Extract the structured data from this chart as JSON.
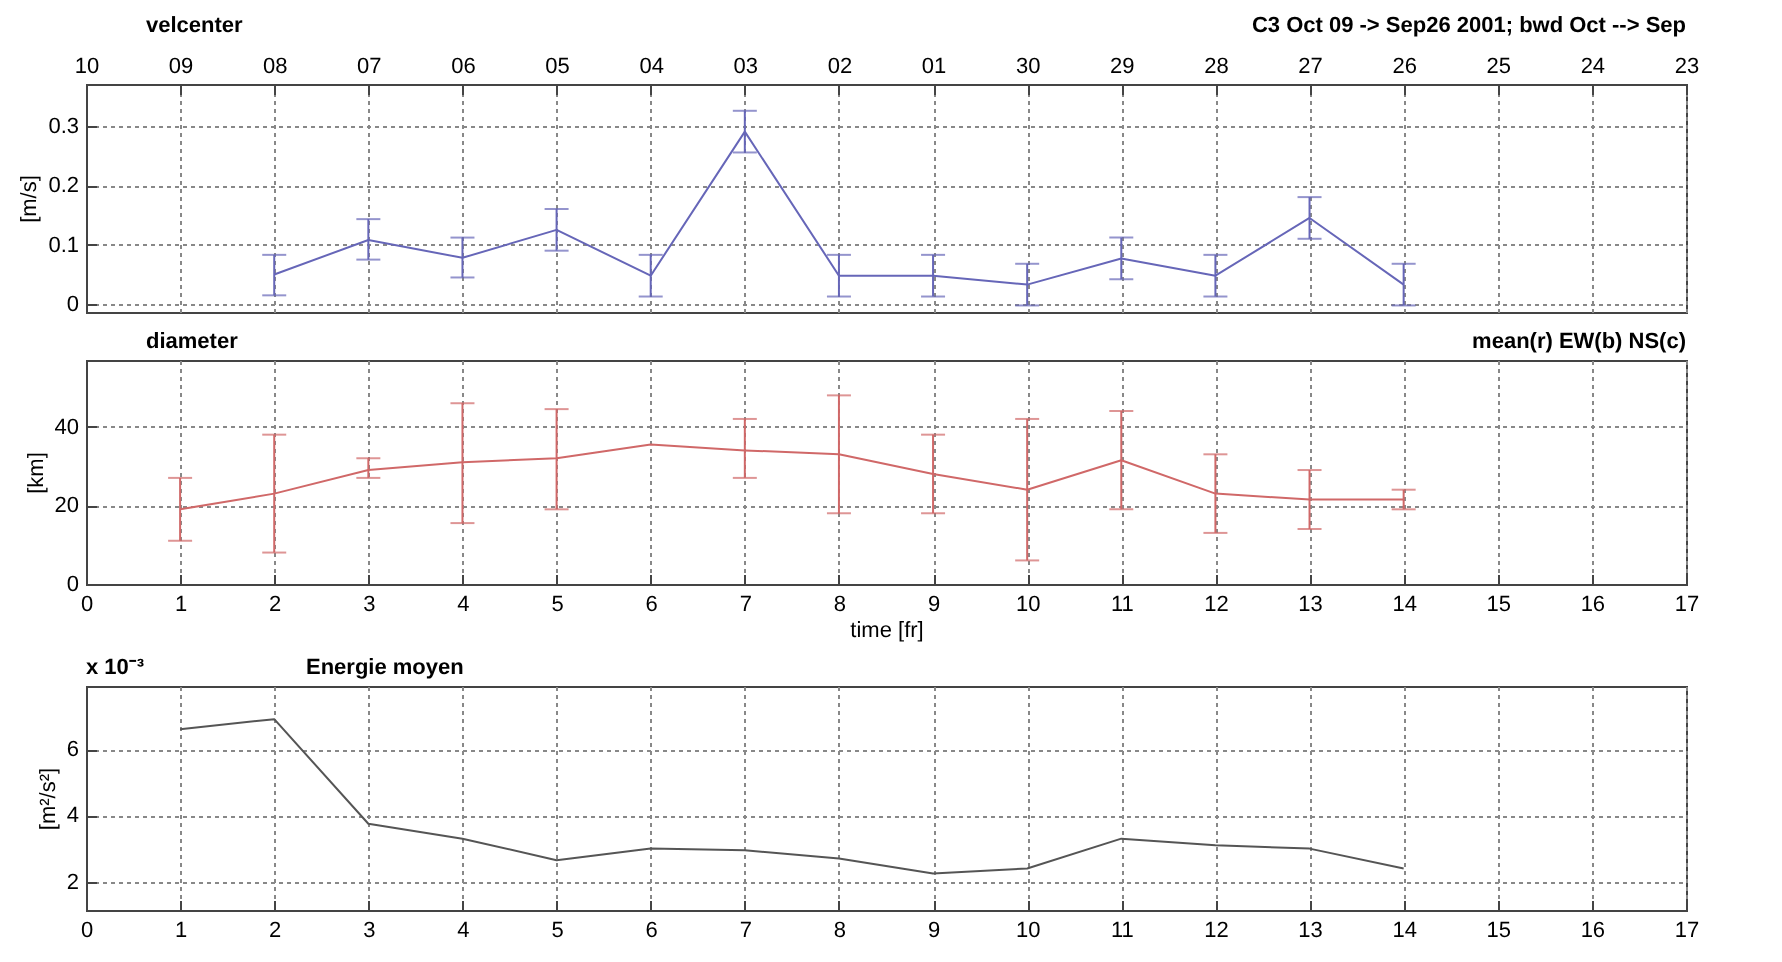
{
  "chart_data": [
    {
      "type": "line",
      "title": "velcenter",
      "annotations": [
        "C3 Oct 09 -> Sep26 2001;  bwd Oct --> Sep"
      ],
      "ylabel": "[m/s]",
      "categories": [
        "10",
        "09",
        "08",
        "07",
        "06",
        "05",
        "04",
        "03",
        "02",
        "01",
        "30",
        "29",
        "28",
        "27",
        "26",
        "25",
        "24",
        "23"
      ],
      "ylim": [
        -0.013,
        0.37
      ],
      "yticks": [
        0,
        0.1,
        0.2,
        0.3
      ],
      "grid": true,
      "series": [
        {
          "color": "#6666b8",
          "values": [
            null,
            null,
            0.05,
            0.108,
            0.078,
            0.125,
            0.048,
            0.29,
            0.048,
            0.048,
            0.033,
            0.077,
            0.048,
            0.145,
            0.033,
            null,
            null,
            null
          ],
          "errors": [
            null,
            null,
            [
              0.015,
              0.083
            ],
            [
              0.075,
              0.143
            ],
            [
              0.045,
              0.112
            ],
            [
              0.09,
              0.16
            ],
            [
              0.013,
              0.083
            ],
            [
              0.255,
              0.325
            ],
            [
              0.013,
              0.083
            ],
            [
              0.013,
              0.083
            ],
            [
              -0.002,
              0.068
            ],
            [
              0.042,
              0.112
            ],
            [
              0.013,
              0.083
            ],
            [
              0.11,
              0.18
            ],
            [
              -0.002,
              0.068
            ],
            null,
            null,
            null
          ]
        }
      ]
    },
    {
      "type": "line",
      "title": "diameter",
      "annotations": [
        "mean(r) EW(b) NS(c)"
      ],
      "ylabel": "[km]",
      "xlabel": "time [fr]",
      "xlim": [
        0,
        17
      ],
      "xticks": [
        0,
        1,
        2,
        3,
        4,
        5,
        6,
        7,
        8,
        9,
        10,
        11,
        12,
        13,
        14,
        15,
        16,
        17
      ],
      "ylim": [
        0,
        57
      ],
      "yticks": [
        0,
        20,
        40
      ],
      "grid": true,
      "x": [
        1,
        2,
        3,
        4,
        5,
        6,
        7,
        8,
        9,
        10,
        11,
        12,
        13,
        14
      ],
      "series": [
        {
          "color": "#d06868",
          "values": [
            19,
            23,
            29,
            31,
            32,
            35.5,
            34,
            33,
            28,
            24,
            31.5,
            23,
            21.5,
            21.5
          ],
          "errors": [
            [
              11,
              27
            ],
            [
              8,
              38
            ],
            [
              27,
              32
            ],
            [
              15.5,
              46
            ],
            [
              19,
              44.5
            ],
            null,
            [
              27,
              42
            ],
            [
              18,
              48
            ],
            [
              18,
              38
            ],
            [
              6,
              42
            ],
            [
              19,
              44
            ],
            [
              13,
              33
            ],
            [
              14,
              29
            ],
            [
              19,
              24
            ]
          ]
        }
      ]
    },
    {
      "type": "line",
      "title": "Energie moyen",
      "annotations": [
        "x 10⁻³"
      ],
      "ylabel": "[m²/s²]",
      "xlim": [
        0,
        17
      ],
      "xticks": [
        0,
        1,
        2,
        3,
        4,
        5,
        6,
        7,
        8,
        9,
        10,
        11,
        12,
        13,
        14,
        15,
        16,
        17
      ],
      "ylim": [
        1.15,
        7.9
      ],
      "yticks": [
        2,
        4,
        6
      ],
      "grid": true,
      "x": [
        1,
        2,
        3,
        4,
        5,
        6,
        7,
        8,
        9,
        10,
        11,
        12,
        13,
        14
      ],
      "series": [
        {
          "color": "#555555",
          "values": [
            6.6,
            6.9,
            3.75,
            3.3,
            2.65,
            3.0,
            2.95,
            2.7,
            2.25,
            2.4,
            3.3,
            3.1,
            3.0,
            2.4
          ]
        }
      ]
    }
  ]
}
